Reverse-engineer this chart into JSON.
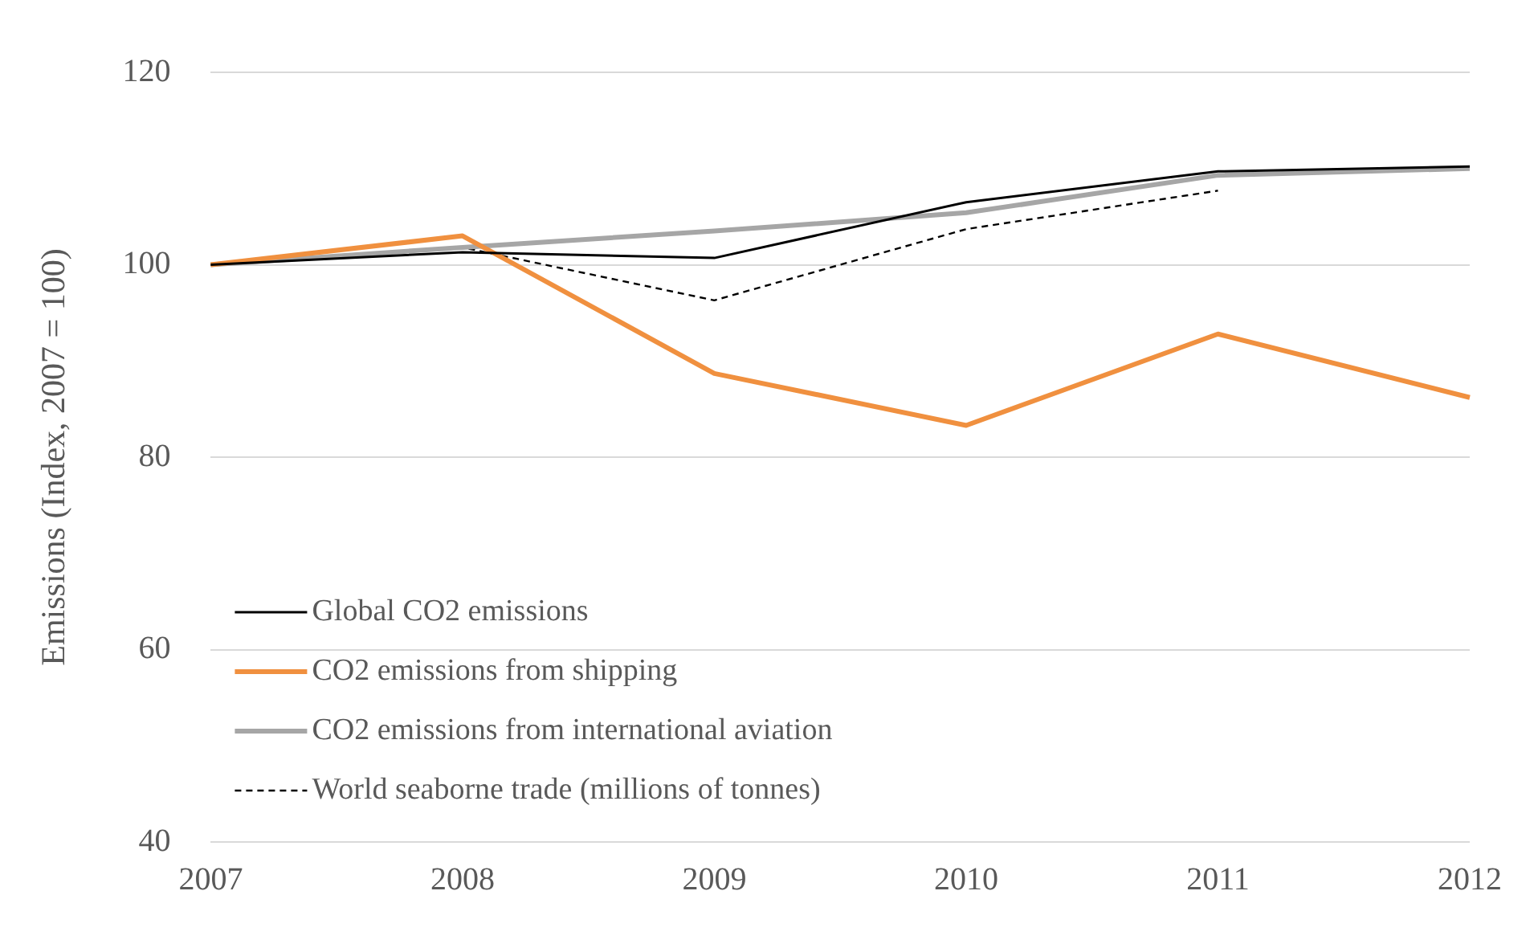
{
  "chart_data": {
    "type": "line",
    "ylabel": "Emissions (Index, 2007 = 100)",
    "categories": [
      "2007",
      "2008",
      "2009",
      "2010",
      "2011",
      "2012"
    ],
    "series": [
      {
        "name": "Global CO2 emissions",
        "color": "#000000",
        "line_style": "solid",
        "values": [
          100,
          101.3,
          100.7,
          106.5,
          109.7,
          110.2
        ]
      },
      {
        "name": "CO2 emissions from shipping",
        "color": "#f0903f",
        "line_style": "solid",
        "values": [
          100,
          103,
          88.7,
          83.3,
          92.8,
          86.2
        ]
      },
      {
        "name": "CO2 emissions from international aviation",
        "color": "#a6a6a6",
        "line_style": "solid",
        "values": [
          100,
          101.8,
          103.5,
          105.4,
          109.3,
          110
        ]
      },
      {
        "name": "World seaborne trade (millions of tonnes)",
        "color": "#000000",
        "line_style": "dashed",
        "values": [
          100,
          101.8,
          96.3,
          103.7,
          107.7,
          null
        ]
      }
    ],
    "ylim": [
      40,
      120
    ],
    "yticks": [
      40,
      60,
      80,
      100,
      120
    ],
    "grid": "y",
    "legend": "bottom left",
    "marker": "none"
  }
}
